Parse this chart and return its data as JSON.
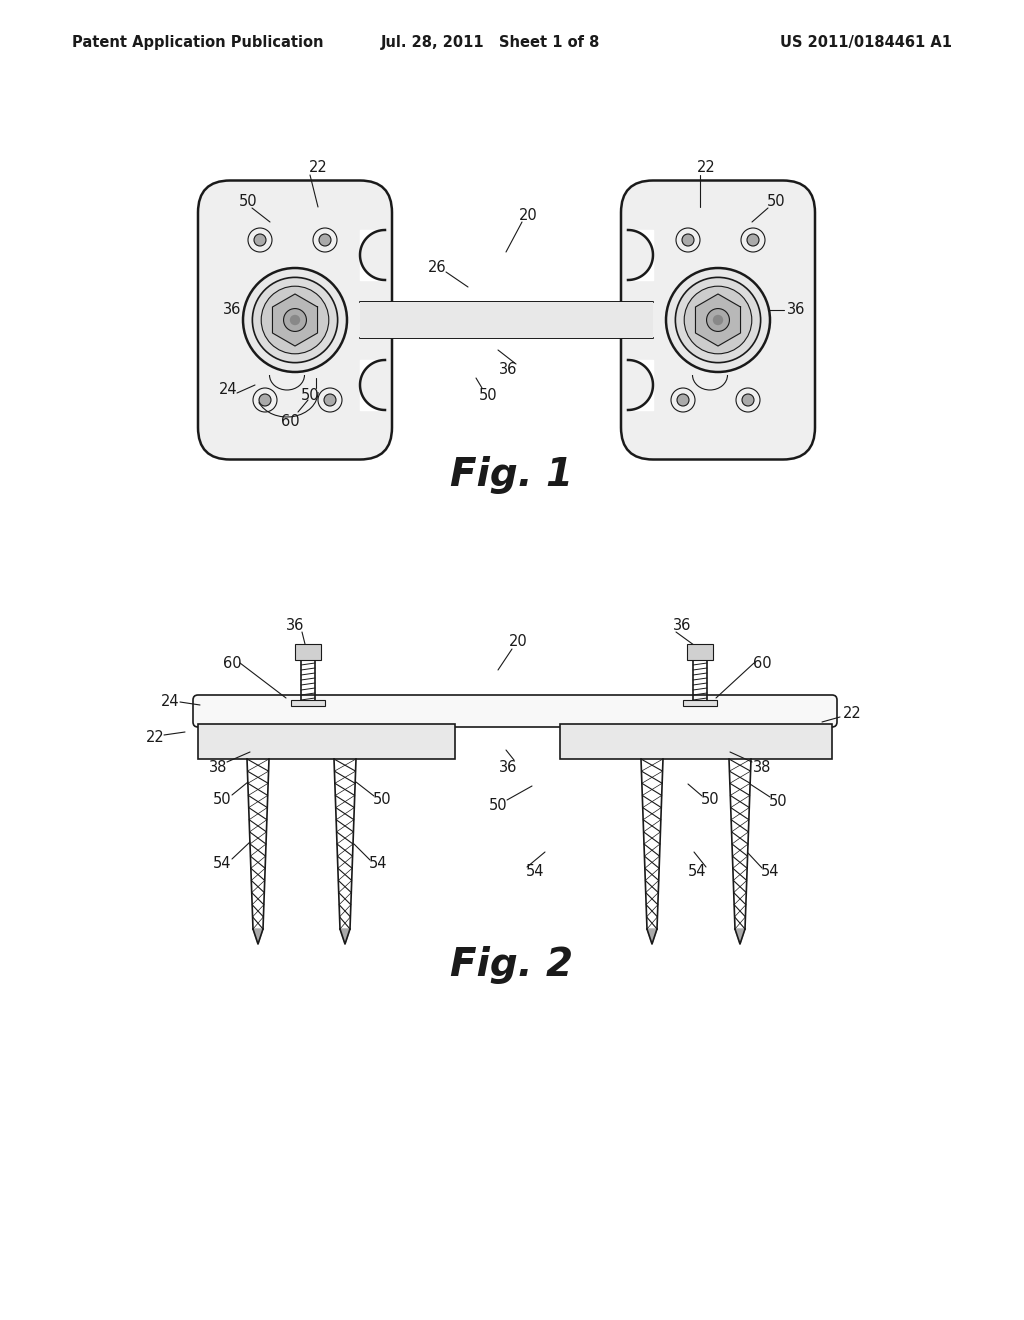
{
  "bg": "#ffffff",
  "lc": "#1a1a1a",
  "header_left": "Patent Application Publication",
  "header_mid": "Jul. 28, 2011   Sheet 1 of 8",
  "header_right": "US 2011/0184461 A1",
  "fig1_title": "Fig. 1",
  "fig2_title": "Fig. 2",
  "fig_width": 10.24,
  "fig_height": 13.2
}
